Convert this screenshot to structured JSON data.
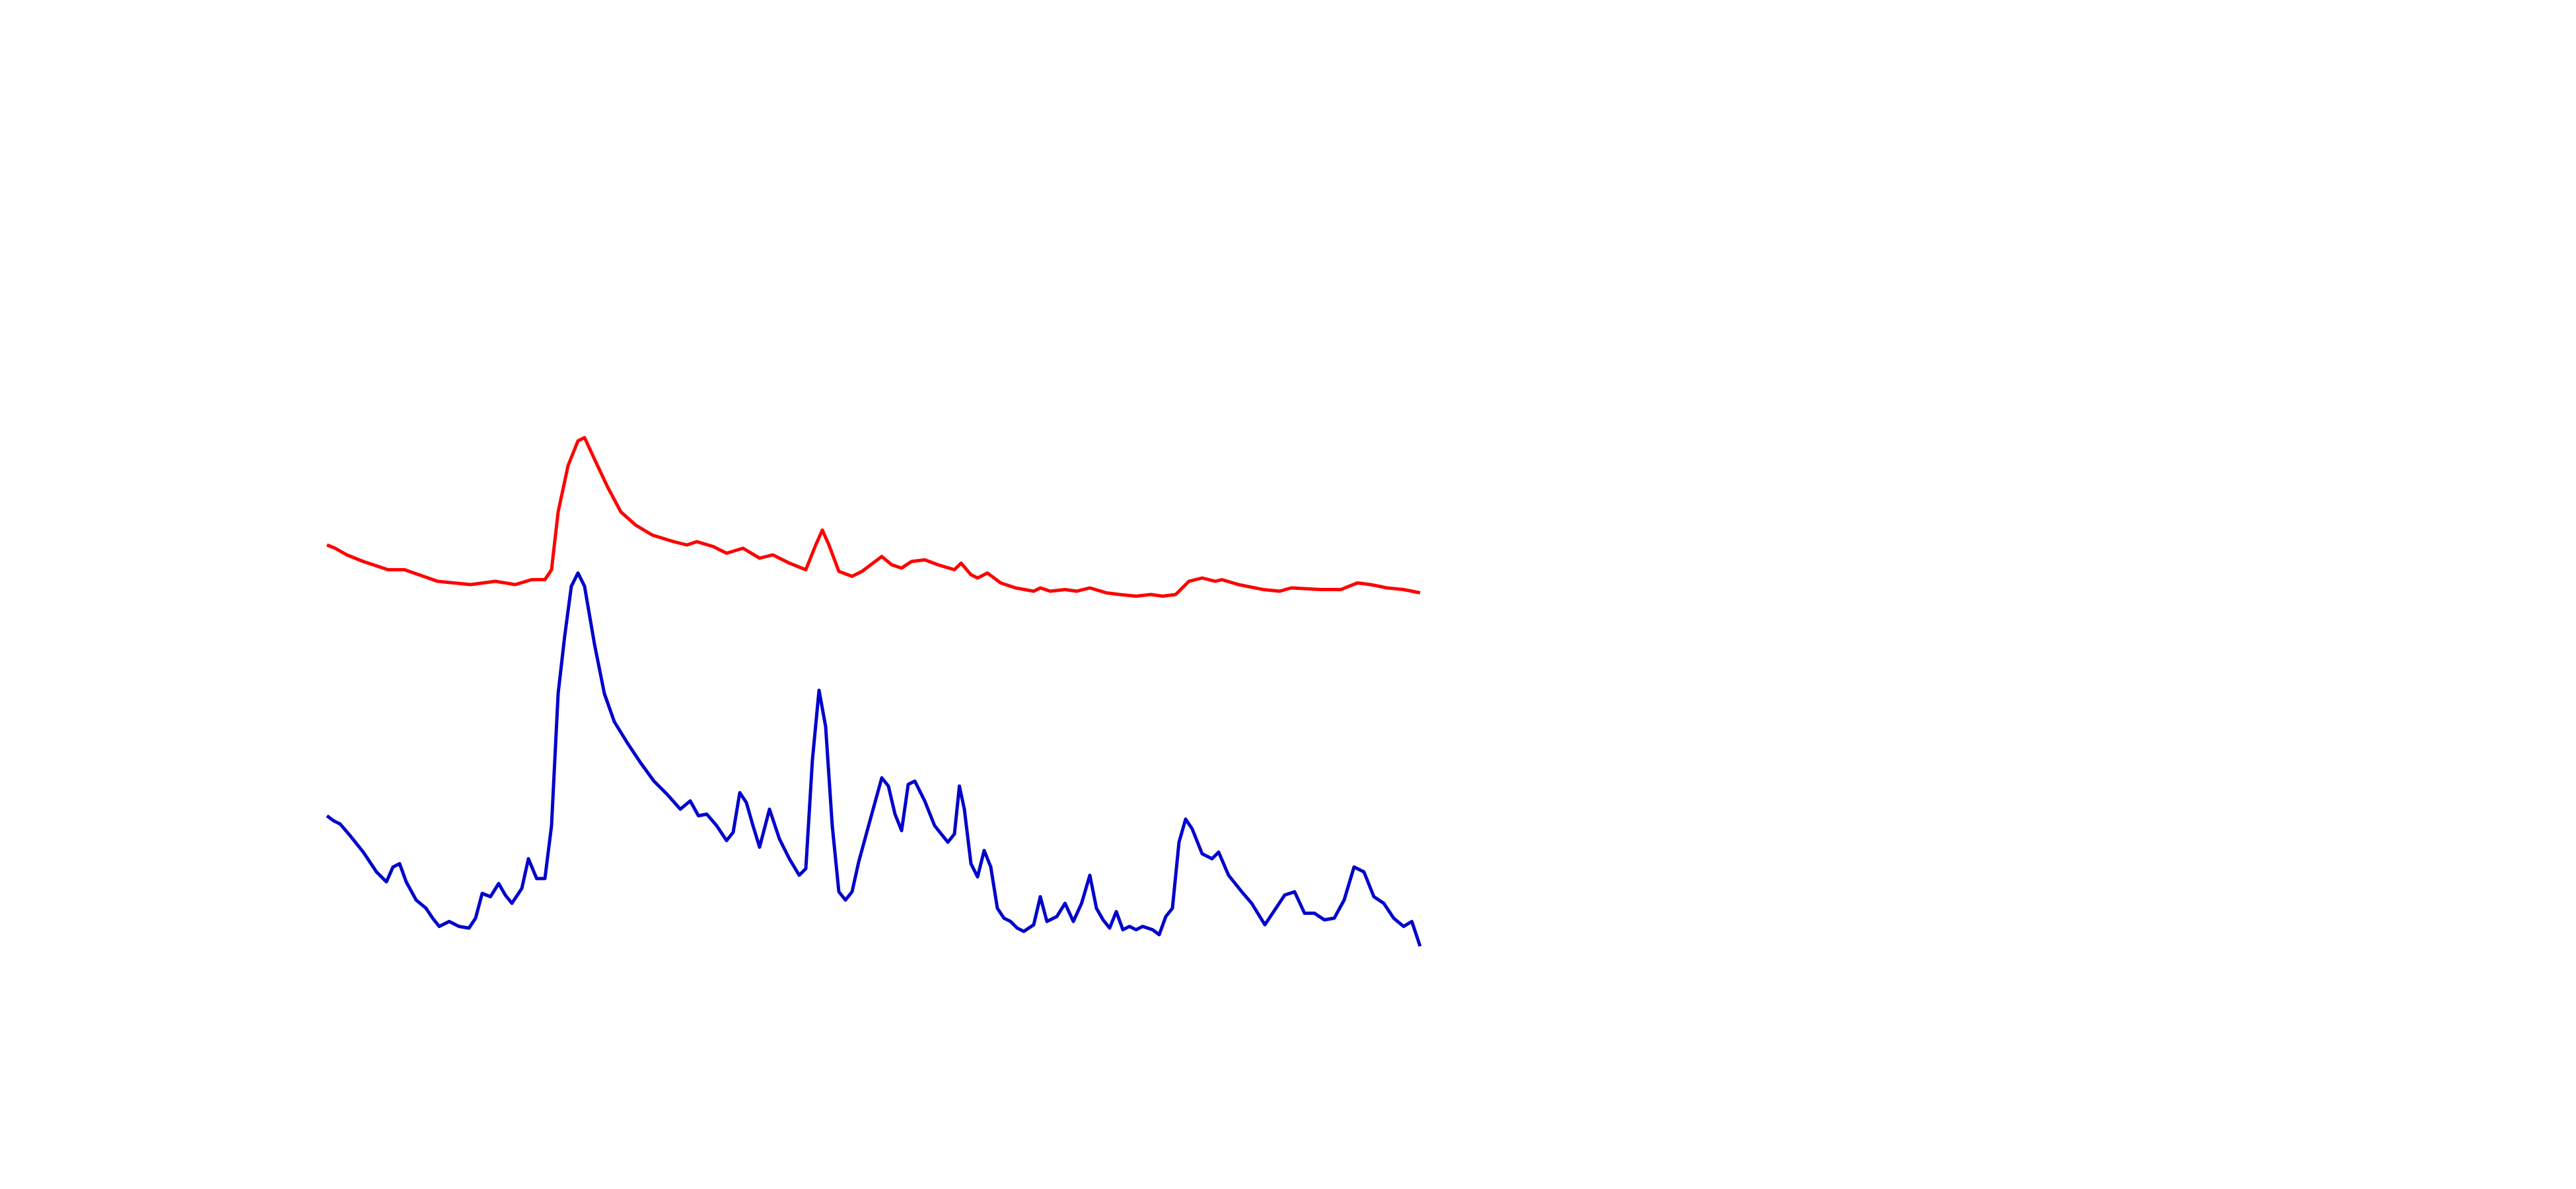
{
  "chart_data": {
    "type": "line",
    "xlim": [
      0,
      1560
    ],
    "ylim": [
      720,
      0
    ],
    "series": [
      {
        "color": "#ff0000",
        "x": [
          198,
          203,
          210,
          220,
          235,
          245,
          265,
          285,
          300,
          312,
          322,
          330,
          334,
          338,
          344,
          350,
          354,
          360,
          368,
          376,
          385,
          395,
          408,
          416,
          422,
          432,
          440,
          450,
          460,
          468,
          478,
          488,
          494,
          498,
          502,
          508,
          516,
          522,
          534,
          540,
          546,
          552,
          560,
          568,
          578,
          582,
          588,
          592,
          598,
          606,
          615,
          626,
          630,
          636,
          645,
          652,
          660,
          670,
          678,
          688,
          697,
          704,
          712,
          720,
          728,
          736,
          740,
          750,
          765,
          775,
          782,
          800,
          812,
          822,
          830,
          840,
          850,
          860
        ],
        "values": [
          330,
          332,
          336,
          340,
          345,
          345,
          352,
          354,
          352,
          354,
          351,
          351,
          345,
          310,
          282,
          267,
          265,
          278,
          295,
          310,
          318,
          324,
          328,
          330,
          328,
          331,
          335,
          332,
          338,
          336,
          341,
          345,
          330,
          321,
          330,
          346,
          349,
          346,
          337,
          342,
          344,
          340,
          339,
          342,
          345,
          341,
          348,
          350,
          347,
          353,
          356,
          358,
          356,
          358,
          357,
          358,
          356,
          359,
          360,
          361,
          360,
          361,
          360,
          352,
          350,
          352,
          351,
          354,
          357,
          358,
          356,
          357,
          357,
          353,
          354,
          356,
          357,
          359
        ]
      },
      {
        "color": "#0000cc",
        "x": [
          198,
          202,
          206,
          212,
          220,
          228,
          234,
          238,
          242,
          246,
          252,
          258,
          262,
          266,
          272,
          278,
          284,
          288,
          292,
          297,
          302,
          306,
          310,
          316,
          320,
          325,
          330,
          334,
          338,
          342,
          346,
          350,
          354,
          360,
          366,
          372,
          380,
          388,
          396,
          404,
          412,
          418,
          423,
          428,
          434,
          440,
          444,
          448,
          452,
          456,
          460,
          466,
          472,
          478,
          484,
          488,
          492,
          496,
          500,
          504,
          508,
          512,
          516,
          520,
          526,
          534,
          538,
          542,
          546,
          550,
          554,
          560,
          566,
          574,
          578,
          581,
          584,
          588,
          592,
          596,
          600,
          604,
          608,
          612,
          616,
          620,
          626,
          630,
          634,
          640,
          645,
          650,
          655,
          660,
          664,
          668,
          672,
          676,
          680,
          684,
          688,
          692,
          698,
          702,
          706,
          710,
          714,
          718,
          722,
          728,
          734,
          738,
          744,
          752,
          758,
          766,
          772,
          778,
          784,
          790,
          796,
          802,
          808,
          814,
          820,
          826,
          832,
          838,
          844,
          850,
          855,
          860
        ],
        "values": [
          494,
          497,
          499,
          506,
          516,
          528,
          534,
          525,
          523,
          534,
          545,
          550,
          556,
          561,
          558,
          561,
          562,
          556,
          541,
          543,
          535,
          542,
          547,
          538,
          520,
          532,
          532,
          500,
          420,
          385,
          355,
          347,
          355,
          390,
          420,
          437,
          450,
          462,
          473,
          481,
          490,
          485,
          494,
          493,
          500,
          509,
          504,
          480,
          486,
          500,
          513,
          490,
          508,
          520,
          530,
          526,
          460,
          418,
          440,
          500,
          540,
          545,
          540,
          522,
          500,
          471,
          476,
          493,
          503,
          475,
          473,
          485,
          500,
          510,
          505,
          476,
          490,
          523,
          531,
          515,
          525,
          550,
          556,
          558,
          562,
          564,
          560,
          543,
          558,
          555,
          547,
          558,
          547,
          530,
          550,
          557,
          562,
          552,
          563,
          561,
          563,
          561,
          563,
          566,
          555,
          550,
          510,
          496,
          502,
          517,
          520,
          516,
          530,
          540,
          547,
          560,
          551,
          542,
          540,
          553,
          553,
          557,
          556,
          545,
          525,
          528,
          543,
          547,
          556,
          561,
          558,
          573
        ]
      }
    ]
  }
}
